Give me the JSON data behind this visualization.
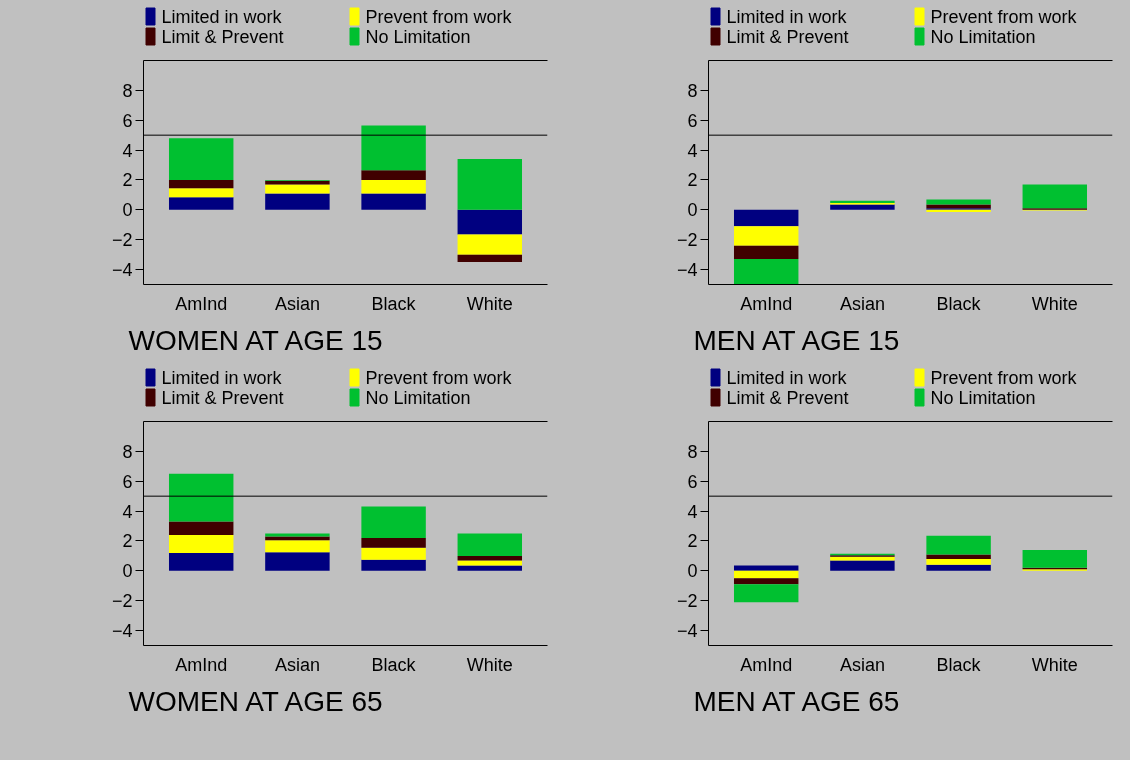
{
  "chart_data": [
    {
      "type": "bar",
      "stacked": true,
      "title": "WOMEN AT AGE 15",
      "categories": [
        "AmInd",
        "Asian",
        "Black",
        "White"
      ],
      "ylim": [
        -5,
        10
      ],
      "yticks": [
        -4,
        -2,
        0,
        2,
        4,
        6,
        8
      ],
      "grid": false,
      "legend": "top",
      "ref_lines": [
        {
          "axis": "y",
          "value": 5,
          "label": null
        }
      ],
      "series": [
        {
          "name": "Limited in work",
          "color": "#000080",
          "values": [
            0.85,
            1.1,
            1.1,
            -1.65
          ]
        },
        {
          "name": "Prevent from work",
          "color": "#ffff00",
          "values": [
            0.6,
            0.6,
            0.9,
            -1.35
          ]
        },
        {
          "name": "Limit & Prevent",
          "color": "#400000",
          "values": [
            0.55,
            0.25,
            0.65,
            -0.5
          ]
        },
        {
          "name": "No Limitation",
          "color": "#00c030",
          "values": [
            2.8,
            0.05,
            3.0,
            3.4
          ]
        }
      ]
    },
    {
      "type": "bar",
      "stacked": true,
      "title": "MEN AT AGE 15",
      "categories": [
        "AmInd",
        "Asian",
        "Black",
        "White"
      ],
      "ylim": [
        -5,
        10
      ],
      "yticks": [
        -4,
        -2,
        0,
        2,
        4,
        6,
        8
      ],
      "grid": false,
      "legend": "top",
      "ref_lines": [
        {
          "axis": "y",
          "value": 5,
          "label": null
        }
      ],
      "series": [
        {
          "name": "Limited in work",
          "color": "#000080",
          "values": [
            -1.1,
            0.35,
            0.1,
            0
          ]
        },
        {
          "name": "Prevent from work",
          "color": "#ffff00",
          "values": [
            -1.3,
            0.1,
            -0.15,
            -0.05
          ]
        },
        {
          "name": "Limit & Prevent",
          "color": "#400000",
          "values": [
            -0.9,
            0,
            0.25,
            0.1
          ]
        },
        {
          "name": "No Limitation",
          "color": "#00c030",
          "values": [
            -1.7,
            0.15,
            0.35,
            1.6
          ]
        }
      ]
    },
    {
      "type": "bar",
      "stacked": true,
      "title": "WOMEN AT AGE 65",
      "categories": [
        "AmInd",
        "Asian",
        "Black",
        "White"
      ],
      "ylim": [
        -5,
        10
      ],
      "yticks": [
        -4,
        -2,
        0,
        2,
        4,
        6,
        8
      ],
      "grid": false,
      "legend": "top",
      "ref_lines": [
        {
          "axis": "y",
          "value": 5,
          "label": null
        }
      ],
      "series": [
        {
          "name": "Limited in work",
          "color": "#000080",
          "values": [
            1.2,
            1.25,
            0.75,
            0.35
          ]
        },
        {
          "name": "Prevent from work",
          "color": "#ffff00",
          "values": [
            1.2,
            0.8,
            0.8,
            0.35
          ]
        },
        {
          "name": "Limit & Prevent",
          "color": "#400000",
          "values": [
            0.9,
            0.25,
            0.65,
            0.3
          ]
        },
        {
          "name": "No Limitation",
          "color": "#00c030",
          "values": [
            3.2,
            0.2,
            2.1,
            1.5
          ]
        }
      ]
    },
    {
      "type": "bar",
      "stacked": true,
      "title": "MEN AT AGE 65",
      "categories": [
        "AmInd",
        "Asian",
        "Black",
        "White"
      ],
      "ylim": [
        -5,
        10
      ],
      "yticks": [
        -4,
        -2,
        0,
        2,
        4,
        6,
        8
      ],
      "grid": false,
      "legend": "top",
      "ref_lines": [
        {
          "axis": "y",
          "value": 5,
          "label": null
        }
      ],
      "series": [
        {
          "name": "Limited in work",
          "color": "#000080",
          "values": [
            0.35,
            0.7,
            0.4,
            0
          ]
        },
        {
          "name": "Prevent from work",
          "color": "#ffff00",
          "values": [
            -0.5,
            0.25,
            0.4,
            0.1
          ]
        },
        {
          "name": "Limit & Prevent",
          "color": "#400000",
          "values": [
            -0.4,
            0.1,
            0.3,
            0.1
          ]
        },
        {
          "name": "No Limitation",
          "color": "#00c030",
          "values": [
            -1.2,
            0.1,
            1.25,
            1.2
          ]
        }
      ]
    }
  ]
}
